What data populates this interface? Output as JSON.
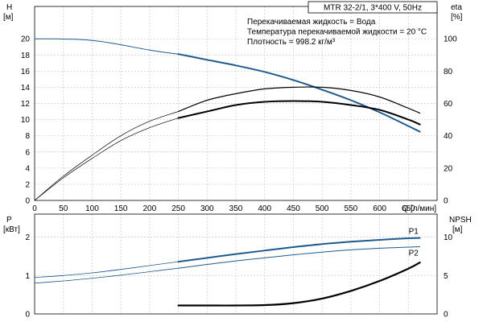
{
  "chart_data": [
    {
      "type": "line",
      "title": "MTR 32-2/1, 3*400 V, 50Hz",
      "annotations": [
        "Перекачиваемая жидкость = Вода",
        "Температура перекачиваемой жидкости = 20 °C",
        "Плотность = 998.2 кг/м³"
      ],
      "xlabel": "Q [л/мин]",
      "xlim": [
        0,
        700
      ],
      "x_ticks": [
        "0",
        "50",
        "100",
        "150",
        "200",
        "250",
        "300",
        "350",
        "400",
        "450",
        "500",
        "550",
        "600",
        "650"
      ],
      "y_left_label_top": "H",
      "y_left_label_unit": "[м]",
      "y_left_lim": [
        0,
        24
      ],
      "y_left_ticks": [
        "0",
        "2",
        "4",
        "6",
        "8",
        "10",
        "12",
        "14",
        "16",
        "18",
        "20"
      ],
      "y_right_label_top": "eta",
      "y_right_label_unit": "[%]",
      "y_right_lim": [
        0,
        120
      ],
      "y_right_ticks": [
        "0",
        "20",
        "40",
        "60",
        "80",
        "100"
      ],
      "series": [
        {
          "axis": "left",
          "color": "#1f5a8e",
          "x": [
            0,
            100,
            200,
            250,
            300,
            350,
            400,
            450,
            500,
            550,
            600,
            650,
            670
          ],
          "values": [
            20,
            19.8,
            18.6,
            18.1,
            17.4,
            16.7,
            15.9,
            14.9,
            13.7,
            12.4,
            10.9,
            9.2,
            8.5
          ]
        },
        {
          "axis": "right",
          "color": "#000000",
          "x": [
            0,
            50,
            100,
            150,
            200,
            250,
            300,
            350,
            400,
            450,
            500,
            550,
            600,
            650,
            670
          ],
          "values": [
            0,
            14,
            26,
            37,
            45,
            51,
            55,
            59,
            61,
            61.5,
            61,
            59,
            56,
            50,
            47
          ]
        },
        {
          "axis": "right",
          "color": "#000000",
          "x": [
            0,
            50,
            100,
            150,
            200,
            250,
            300,
            350,
            400,
            450,
            500,
            550,
            600,
            650,
            670
          ],
          "values": [
            0,
            15,
            28,
            40,
            49,
            55,
            62,
            66,
            69,
            70,
            70,
            68,
            64,
            57,
            54
          ]
        }
      ]
    },
    {
      "type": "line",
      "y_left_label_top": "P",
      "y_left_label_unit": "[кВт]",
      "y_left_lim": [
        0,
        2.6
      ],
      "y_left_ticks": [
        "0",
        "1",
        "2"
      ],
      "y_right_label_top": "NPSH",
      "y_right_label_unit": "[м]",
      "y_right_lim": [
        0,
        13
      ],
      "y_right_ticks": [
        "0",
        "5",
        "10"
      ],
      "xlim": [
        0,
        700
      ],
      "series": [
        {
          "name": "P1",
          "axis": "left",
          "color": "#1f5a8e",
          "x": [
            0,
            50,
            100,
            150,
            200,
            250,
            300,
            350,
            400,
            450,
            500,
            550,
            600,
            650,
            670
          ],
          "values": [
            0.95,
            1.0,
            1.07,
            1.16,
            1.26,
            1.36,
            1.46,
            1.56,
            1.65,
            1.74,
            1.82,
            1.88,
            1.93,
            1.97,
            1.98
          ]
        },
        {
          "name": "P2",
          "axis": "left",
          "color": "#1f5a8e",
          "x": [
            0,
            50,
            100,
            150,
            200,
            250,
            300,
            350,
            400,
            450,
            500,
            550,
            600,
            650,
            670
          ],
          "values": [
            0.8,
            0.86,
            0.93,
            1.01,
            1.1,
            1.19,
            1.29,
            1.38,
            1.46,
            1.54,
            1.61,
            1.67,
            1.71,
            1.74,
            1.75
          ]
        },
        {
          "axis": "right",
          "color": "#000000",
          "x": [
            250,
            300,
            350,
            400,
            450,
            500,
            550,
            600,
            650,
            670
          ],
          "values": [
            1.1,
            1.1,
            1.1,
            1.15,
            1.4,
            2.0,
            3.0,
            4.3,
            5.9,
            6.7
          ]
        }
      ]
    }
  ]
}
